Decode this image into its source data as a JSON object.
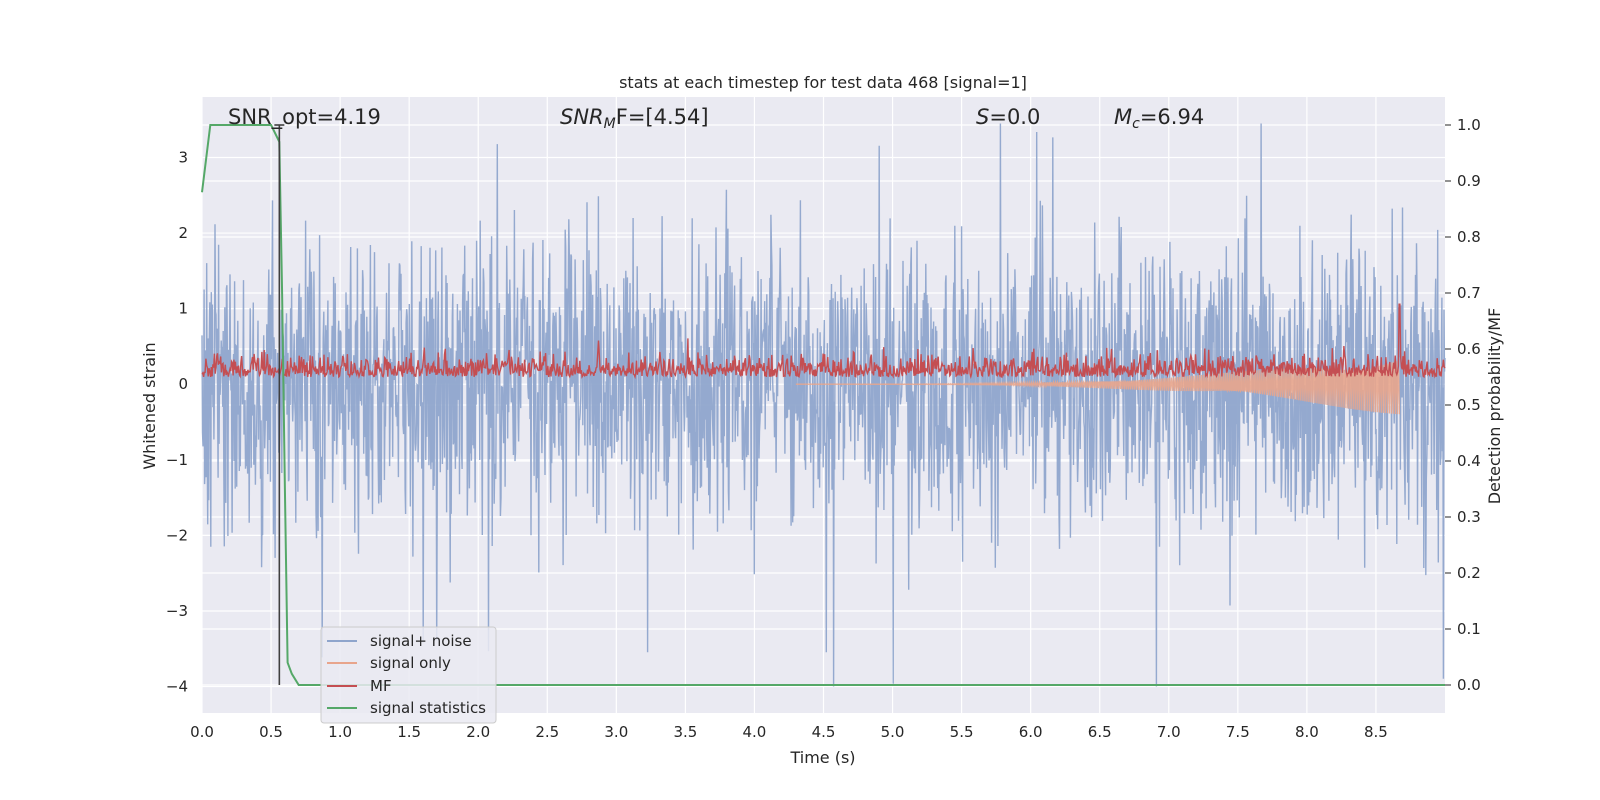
{
  "chart_data": {
    "type": "line",
    "title": "stats at each timestep for test data 468 [signal=1]",
    "xlabel": "Time (s)",
    "ylabel_left": "Whitened strain",
    "ylabel_right": "Detection probability/MF",
    "xlim": [
      0.0,
      9.0
    ],
    "ylim_left": [
      -4.35,
      3.8
    ],
    "ylim_right": [
      -0.05,
      1.05
    ],
    "x_ticks": [
      "0.0",
      "0.5",
      "1.0",
      "1.5",
      "2.0",
      "2.5",
      "3.0",
      "3.5",
      "4.0",
      "4.5",
      "5.0",
      "5.5",
      "6.0",
      "6.5",
      "7.0",
      "7.5",
      "8.0",
      "8.5"
    ],
    "y_ticks_left": [
      "−4",
      "−3",
      "−2",
      "−1",
      "0",
      "1",
      "2",
      "3"
    ],
    "y_ticks_right": [
      "0.0",
      "0.1",
      "0.2",
      "0.3",
      "0.4",
      "0.5",
      "0.6",
      "0.7",
      "0.8",
      "0.9",
      "1.0"
    ],
    "annotations": {
      "snr_opt": "SNR_opt=4.19",
      "snr_mf_sym": "SNR",
      "snr_mf_sub": "M",
      "snr_mf_rest": "F=[4.54]",
      "s_sym": "S",
      "s_rest": "=0.0",
      "mc_sym": "M",
      "mc_sub": "c",
      "mc_rest": "=6.94"
    },
    "grid": true,
    "legend_position": "lower-left",
    "legend": [
      {
        "label": "signal+ noise",
        "color": "#8fa5cc"
      },
      {
        "label": "signal only",
        "color": "#e8a58c"
      },
      {
        "label": "MF",
        "color": "#c44e52"
      },
      {
        "label": "signal statistics",
        "color": "#55a868"
      }
    ],
    "series": [
      {
        "name": "signal+ noise",
        "axis": "left",
        "description_range": [
          -4.0,
          3.5
        ]
      },
      {
        "name": "signal only",
        "axis": "left",
        "chirp_start": 4.3,
        "chirp_end": 8.67,
        "peak_amplitude": 0.42
      },
      {
        "name": "MF",
        "axis": "right",
        "baseline": 0.55,
        "typical_max": 0.61,
        "peak": 0.68
      },
      {
        "name": "signal statistics",
        "axis": "right",
        "x": [
          0.0,
          0.06,
          0.12,
          0.5,
          0.56,
          0.58,
          0.6,
          0.62,
          0.65,
          0.7,
          9.0
        ],
        "y": [
          0.88,
          1.0,
          1.0,
          1.0,
          0.97,
          0.7,
          0.35,
          0.04,
          0.02,
          0.0,
          0.0
        ]
      }
    ],
    "marker_line": {
      "x": 0.56,
      "top": 1.0,
      "bottom": 0.0
    }
  }
}
